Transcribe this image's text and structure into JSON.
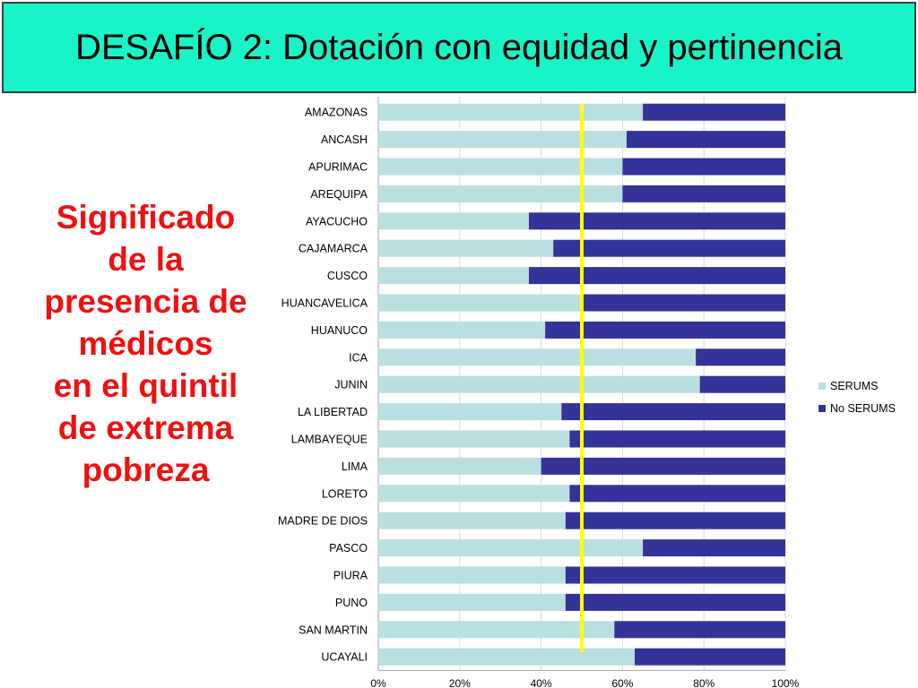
{
  "slide": {
    "title": "DESAFÍO 2: Dotación con equidad y pertinencia",
    "side_text": [
      "Significado",
      "de la",
      "presencia de",
      "médicos",
      "en el quintil",
      "de extrema",
      "pobreza"
    ],
    "colors": {
      "title_background": "#18f3c8",
      "title_border": "#3f3f3f",
      "side_text": "#ee1111"
    }
  },
  "chart_data": {
    "type": "bar",
    "orientation": "horizontal",
    "stacked": "percent",
    "categories": [
      "AMAZONAS",
      "ANCASH",
      "APURIMAC",
      "AREQUIPA",
      "AYACUCHO",
      "CAJAMARCA",
      "CUSCO",
      "HUANCAVELICA",
      "HUANUCO",
      "ICA",
      "JUNIN",
      "LA LIBERTAD",
      "LAMBAYEQUE",
      "LIMA",
      "LORETO",
      "MADRE DE DIOS",
      "PASCO",
      "PIURA",
      "PUNO",
      "SAN MARTIN",
      "UCAYALI"
    ],
    "series": [
      {
        "name": "SERUMS",
        "color": "#b9dfe1",
        "values": [
          65,
          61,
          60,
          60,
          37,
          43,
          37,
          50,
          41,
          78,
          79,
          45,
          47,
          40,
          47,
          46,
          65,
          46,
          46,
          58,
          63
        ]
      },
      {
        "name": "No SERUMS",
        "color": "#333399",
        "values": [
          35,
          39,
          40,
          40,
          63,
          57,
          63,
          50,
          59,
          22,
          21,
          55,
          53,
          60,
          53,
          54,
          35,
          54,
          54,
          42,
          37
        ]
      }
    ],
    "x_ticks": [
      "0%",
      "20%",
      "40%",
      "60%",
      "80%",
      "100%"
    ],
    "xlim": [
      0,
      100
    ],
    "grid": true,
    "legend": "right",
    "reference_line": {
      "value": 50,
      "color": "#ffff00"
    }
  }
}
